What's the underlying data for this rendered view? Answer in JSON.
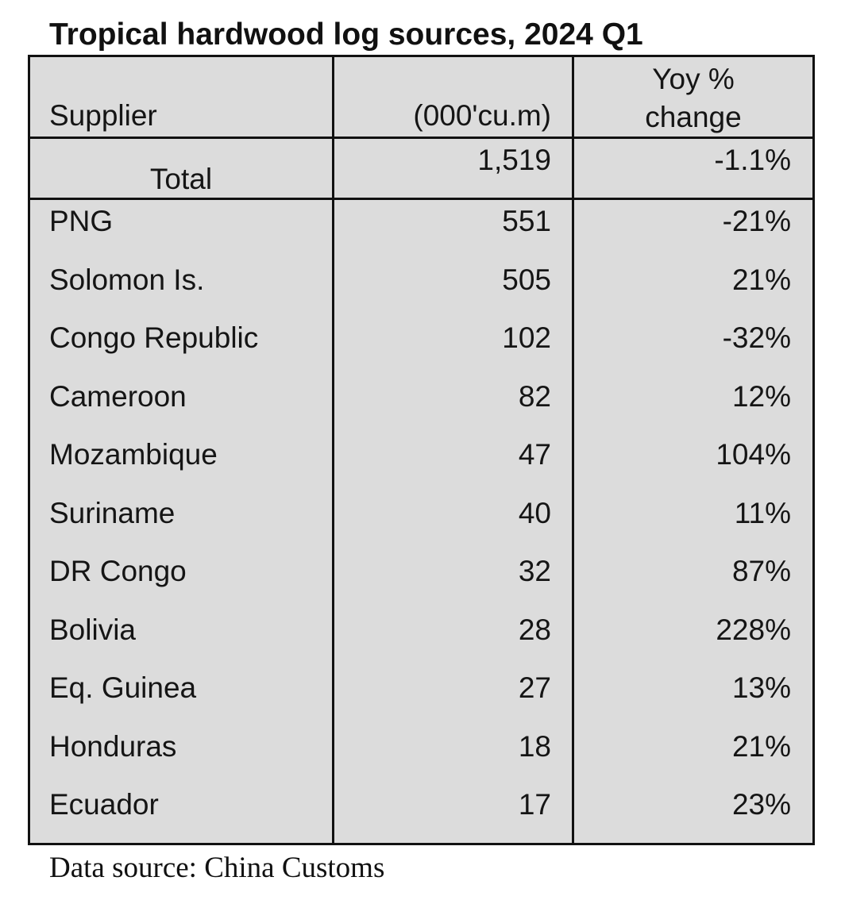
{
  "title": "Tropical hardwood log sources, 2024 Q1",
  "header": {
    "supplier": "Supplier",
    "volume": "(000'cu.m)",
    "yoy_line1": "Yoy %",
    "yoy_line2": "change"
  },
  "total": {
    "label": "Total",
    "volume": "1,519",
    "yoy": "-1.1%"
  },
  "rows": [
    {
      "supplier": "PNG",
      "volume": "551",
      "yoy": "-21%"
    },
    {
      "supplier": "Solomon Is.",
      "volume": "505",
      "yoy": "21%"
    },
    {
      "supplier": "Congo Republic",
      "volume": "102",
      "yoy": "-32%"
    },
    {
      "supplier": "Cameroon",
      "volume": "82",
      "yoy": "12%"
    },
    {
      "supplier": "Mozambique",
      "volume": "47",
      "yoy": "104%"
    },
    {
      "supplier": "Suriname",
      "volume": "40",
      "yoy": "11%"
    },
    {
      "supplier": "DR Congo",
      "volume": "32",
      "yoy": "87%"
    },
    {
      "supplier": "Bolivia",
      "volume": "28",
      "yoy": "228%"
    },
    {
      "supplier": "Eq. Guinea",
      "volume": "27",
      "yoy": "13%"
    },
    {
      "supplier": "Honduras",
      "volume": "18",
      "yoy": "21%"
    },
    {
      "supplier": "Ecuador",
      "volume": "17",
      "yoy": "23%"
    }
  ],
  "source": "Data source: China Customs",
  "colors": {
    "table_background": "#dcdcdc",
    "border": "#111111"
  },
  "chart_data": {
    "type": "table",
    "title": "Tropical hardwood log sources, 2024 Q1",
    "columns": [
      "Supplier",
      "(000'cu.m)",
      "Yoy % change"
    ],
    "total": {
      "supplier": "Total",
      "volume": 1519,
      "yoy_pct": -1.1
    },
    "rows": [
      {
        "supplier": "PNG",
        "volume": 551,
        "yoy_pct": -21
      },
      {
        "supplier": "Solomon Is.",
        "volume": 505,
        "yoy_pct": 21
      },
      {
        "supplier": "Congo Republic",
        "volume": 102,
        "yoy_pct": -32
      },
      {
        "supplier": "Cameroon",
        "volume": 82,
        "yoy_pct": 12
      },
      {
        "supplier": "Mozambique",
        "volume": 47,
        "yoy_pct": 104
      },
      {
        "supplier": "Suriname",
        "volume": 40,
        "yoy_pct": 11
      },
      {
        "supplier": "DR Congo",
        "volume": 32,
        "yoy_pct": 87
      },
      {
        "supplier": "Bolivia",
        "volume": 28,
        "yoy_pct": 228
      },
      {
        "supplier": "Eq. Guinea",
        "volume": 27,
        "yoy_pct": 13
      },
      {
        "supplier": "Honduras",
        "volume": 18,
        "yoy_pct": 21
      },
      {
        "supplier": "Ecuador",
        "volume": 17,
        "yoy_pct": 23
      }
    ],
    "source": "Data source: China Customs"
  }
}
